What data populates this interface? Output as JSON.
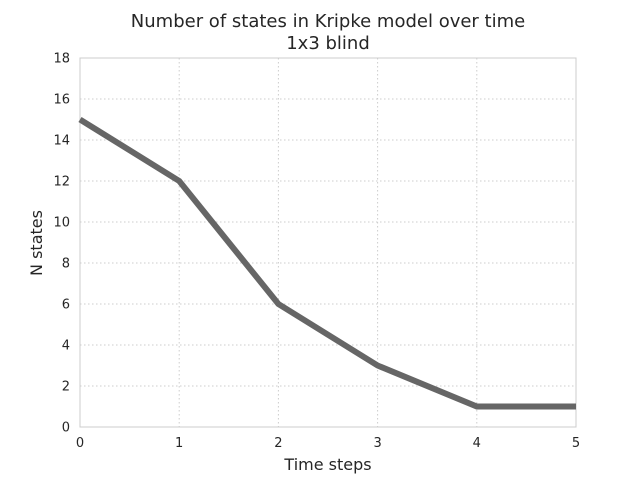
{
  "chart_data": {
    "type": "line",
    "title": "Number of states in Kripke model over time",
    "subtitle": "1x3 blind",
    "xlabel": "Time steps",
    "ylabel": "N states",
    "x": [
      0,
      1,
      2,
      3,
      4,
      5
    ],
    "series": [
      {
        "values": [
          15,
          12,
          6,
          3,
          1,
          1
        ],
        "color": "#666666"
      }
    ],
    "xlim": [
      0,
      5
    ],
    "ylim": [
      0,
      18
    ],
    "xticks": [
      0,
      1,
      2,
      3,
      4,
      5
    ],
    "yticks": [
      0,
      2,
      4,
      6,
      8,
      10,
      12,
      14,
      16,
      18
    ],
    "grid": true,
    "grid_color": "#cccccc",
    "frame_color": "#cccccc",
    "legend": "none"
  }
}
